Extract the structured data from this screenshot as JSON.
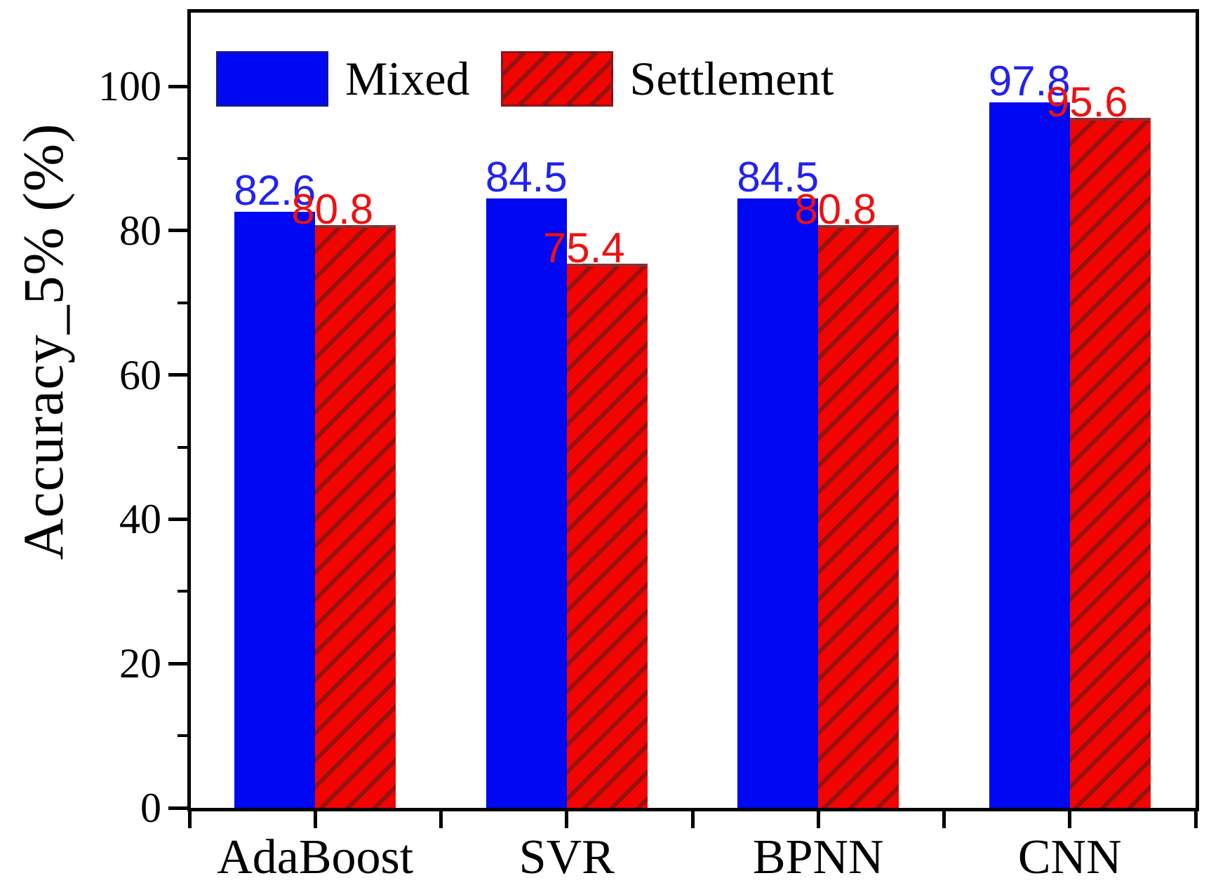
{
  "chart_data": {
    "type": "bar",
    "title": "",
    "xlabel": "",
    "ylabel": "Accuracy_5% (%)",
    "categories": [
      "AdaBoost",
      "SVR",
      "BPNN",
      "CNN"
    ],
    "series": [
      {
        "name": "Mixed",
        "values": [
          82.6,
          84.5,
          84.5,
          97.8
        ],
        "bar_color": "#0007f2",
        "label_color": "#2222ee",
        "hatch": "none"
      },
      {
        "name": "Settlement",
        "values": [
          80.8,
          75.4,
          80.8,
          95.6
        ],
        "bar_color": "#f20400",
        "label_color": "#ee1111",
        "hatch": "diagonal"
      }
    ],
    "value_labels": [
      [
        "82.6",
        "84.5",
        "84.5",
        "97.8"
      ],
      [
        "80.8",
        "75.4",
        "80.8",
        "95.6"
      ]
    ],
    "yticks": [
      "0",
      "20",
      "40",
      "60",
      "80",
      "100"
    ],
    "ytick_values": [
      0,
      20,
      40,
      60,
      80,
      100
    ],
    "minor_ytick_values": [
      10,
      30,
      50,
      70,
      90
    ],
    "ylim": [
      0,
      110.5
    ],
    "grid": false,
    "legend_position": "upper-left",
    "axis_color": "#000000",
    "background_color": "#ffffff"
  }
}
